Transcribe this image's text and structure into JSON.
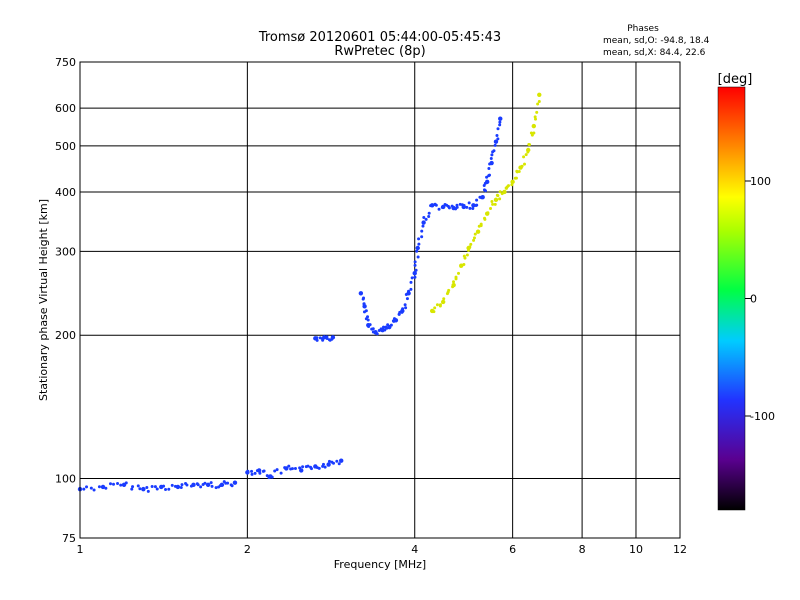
{
  "chart_data": {
    "type": "scatter",
    "title": "Tromsø 20120601 05:44:00-05:45:43",
    "subtitle": "RwPretec (8p)",
    "xlabel": "Frequency [MHz]",
    "ylabel": "Stationary phase Virtual Height [km]",
    "x_scale": "log",
    "y_scale": "log",
    "xlim": [
      1,
      12
    ],
    "ylim": [
      75,
      750
    ],
    "x_ticks": [
      1,
      2,
      4,
      6,
      8,
      10,
      12
    ],
    "y_ticks": [
      75,
      100,
      200,
      300,
      400,
      500,
      600,
      750
    ],
    "x_grid": [
      2,
      4,
      6,
      8,
      10
    ],
    "y_grid": [
      100,
      200,
      300,
      400,
      500,
      600
    ],
    "grid": true,
    "phases_box": {
      "title": "Phases",
      "line1": "mean, sd,O: -94.8, 18.4",
      "line2": "mean, sd,X:  84.4, 22.6"
    },
    "colorbar": {
      "label": "[deg]",
      "range": [
        -180,
        180
      ],
      "ticks": [
        100,
        0,
        -100
      ],
      "colormap": "rainbow (black-purple-blue-cyan-green-yellow-orange-red)"
    },
    "series": [
      {
        "name": "O-mode trace (blue, ~-95 deg)",
        "color": "#1a3cff",
        "segments": [
          {
            "x": [
              1.0,
              1.1,
              1.2,
              1.3,
              1.4,
              1.5,
              1.6,
              1.7,
              1.8,
              1.9
            ],
            "y": [
              95,
              96,
              97,
              95,
              96,
              96,
              97,
              97,
              97,
              98
            ]
          },
          {
            "x": [
              2.0,
              2.1,
              2.2,
              2.35,
              2.5,
              2.65,
              2.8,
              2.95
            ],
            "y": [
              103,
              104,
              101,
              105,
              104,
              106,
              107,
              109
            ]
          },
          {
            "x": [
              2.65,
              2.75,
              2.85
            ],
            "y": [
              197,
              198,
              198
            ]
          },
          {
            "x": [
              3.2,
              3.25,
              3.3,
              3.4,
              3.5,
              3.6,
              3.7,
              3.8,
              3.9,
              4.0,
              4.05,
              4.15,
              4.3,
              4.5,
              4.7,
              4.9,
              5.1,
              5.3,
              5.4,
              5.5,
              5.6,
              5.7
            ],
            "y": [
              245,
              230,
              210,
              203,
              205,
              208,
              215,
              225,
              245,
              270,
              305,
              345,
              375,
              372,
              370,
              372,
              375,
              390,
              420,
              460,
              510,
              570
            ]
          }
        ]
      },
      {
        "name": "X-mode trace (yellow, ~+84 deg)",
        "color": "#d8e600",
        "segments": [
          {
            "x": [
              4.3,
              4.5,
              4.7,
              4.85,
              5.0,
              5.2,
              5.4,
              5.6,
              5.8,
              6.0,
              6.2,
              6.4,
              6.55,
              6.7
            ],
            "y": [
              225,
              235,
              255,
              280,
              305,
              330,
              360,
              385,
              400,
              420,
              450,
              490,
              550,
              640
            ]
          }
        ]
      }
    ]
  }
}
